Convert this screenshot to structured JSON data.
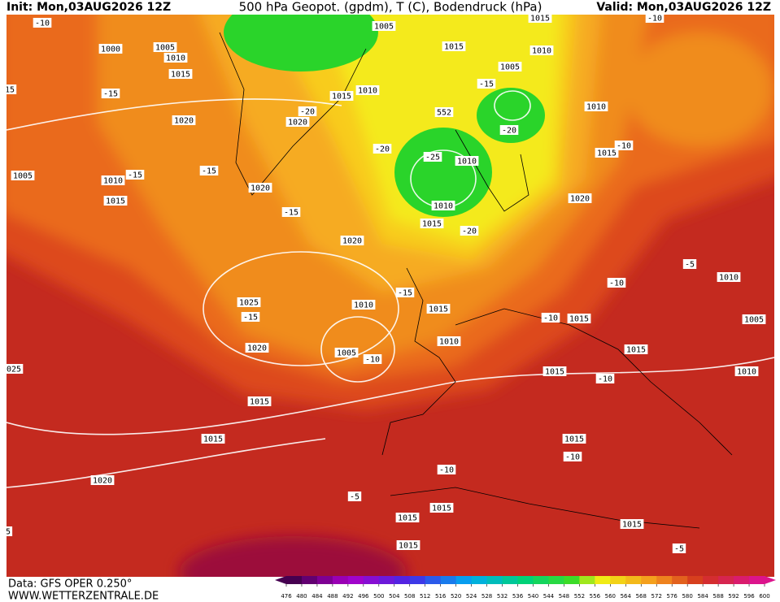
{
  "header": {
    "init": "Init: Mon,03AUG2026 12Z",
    "title": "500 hPa Geopot. (gpdm), T (C), Bodendruck (hPa)",
    "valid": "Valid: Mon,03AUG2026 12Z"
  },
  "footer": {
    "source": "Data: GFS OPER 0.250°",
    "website": "WWW.WETTERZENTRALE.DE"
  },
  "map_labels": [
    "1005",
    "1015",
    "-10",
    "-10",
    "1000",
    "1005",
    "1010",
    "1015",
    "1015",
    "1010",
    "1005",
    "15",
    "-15",
    "-15",
    "1010",
    "1015",
    "-20",
    "1020",
    "1020",
    "552",
    "-20",
    "1010",
    "-20",
    "-25",
    "1010",
    "1015",
    "-10",
    "-15",
    "-15",
    "1005",
    "1010",
    "1015",
    "1020",
    "1010",
    "1020",
    "-15",
    "1015",
    "-20",
    "1020",
    "-5",
    "-10",
    "1010",
    "-15",
    "1025",
    "1010",
    "1015",
    "-15",
    "1015",
    "-10",
    "1005",
    "1020",
    "1005",
    "-10",
    "1010",
    "1015",
    "1015",
    "-10",
    "1010",
    "025",
    "1015",
    "1015",
    "1015",
    "-10",
    "-10",
    "1020",
    "-5",
    "1015",
    "1015",
    "1015",
    "1015",
    "-5",
    "5"
  ],
  "colorbar": {
    "ticks": [
      476,
      480,
      484,
      488,
      492,
      496,
      500,
      504,
      508,
      512,
      516,
      520,
      524,
      528,
      532,
      536,
      540,
      544,
      548,
      552,
      556,
      560,
      564,
      568,
      572,
      576,
      580,
      584,
      588,
      592,
      596,
      600
    ]
  }
}
